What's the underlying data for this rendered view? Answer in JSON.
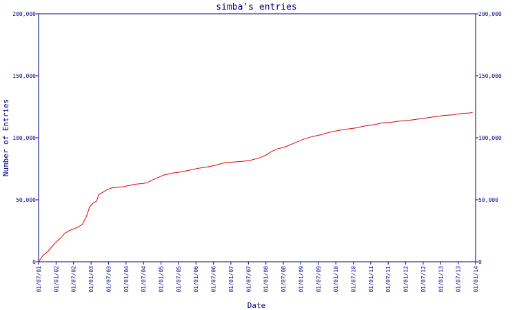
{
  "chart_data": {
    "type": "line",
    "title": "simba's entries",
    "xlabel": "Date",
    "ylabel": "Number of Entries",
    "x_ticks": [
      "01/07/01",
      "01/01/02",
      "01/07/02",
      "01/01/03",
      "01/07/03",
      "01/01/04",
      "01/07/04",
      "01/01/05",
      "01/07/05",
      "01/01/06",
      "01/07/06",
      "01/01/07",
      "01/07/07",
      "01/01/08",
      "01/07/08",
      "01/01/09",
      "01/07/09",
      "01/01/10",
      "01/07/10",
      "01/01/11",
      "01/07/11",
      "01/01/12",
      "01/07/12",
      "01/01/13",
      "01/07/13",
      "01/01/14"
    ],
    "y_ticks": [
      {
        "value": 0,
        "label": "0"
      },
      {
        "value": 50000,
        "label": "50,000"
      },
      {
        "value": 100000,
        "label": "100,000"
      },
      {
        "value": 150000,
        "label": "150,000"
      },
      {
        "value": 200000,
        "label": "200,000"
      }
    ],
    "ylim": [
      0,
      200000
    ],
    "xlim": [
      "2001-07-01",
      "2014-01-01"
    ],
    "grid": false,
    "colors": {
      "axis": "#000080",
      "line": "#e00000",
      "text": "#000080"
    },
    "series": [
      {
        "points": [
          [
            "2001-07-01",
            0
          ],
          [
            "2001-08-15",
            5000
          ],
          [
            "2001-10-01",
            8000
          ],
          [
            "2001-11-15",
            12000
          ],
          [
            "2002-01-01",
            16000
          ],
          [
            "2002-02-15",
            19000
          ],
          [
            "2002-04-01",
            23000
          ],
          [
            "2002-05-15",
            25000
          ],
          [
            "2002-07-01",
            26500
          ],
          [
            "2002-08-15",
            28000
          ],
          [
            "2002-10-01",
            30000
          ],
          [
            "2002-11-15",
            37000
          ],
          [
            "2002-12-15",
            44000
          ],
          [
            "2003-01-15",
            47000
          ],
          [
            "2003-03-01",
            49000
          ],
          [
            "2003-03-20",
            54000
          ],
          [
            "2003-05-01",
            56000
          ],
          [
            "2003-06-15",
            58000
          ],
          [
            "2003-08-01",
            59500
          ],
          [
            "2003-10-01",
            60000
          ],
          [
            "2003-12-01",
            60500
          ],
          [
            "2004-02-01",
            61500
          ],
          [
            "2004-04-01",
            62500
          ],
          [
            "2004-06-01",
            63000
          ],
          [
            "2004-08-01",
            63500
          ],
          [
            "2004-10-01",
            66000
          ],
          [
            "2004-12-01",
            68000
          ],
          [
            "2005-02-01",
            70000
          ],
          [
            "2005-05-01",
            71500
          ],
          [
            "2005-08-01",
            72500
          ],
          [
            "2005-11-01",
            74000
          ],
          [
            "2006-02-01",
            75500
          ],
          [
            "2006-05-01",
            76500
          ],
          [
            "2006-08-01",
            78000
          ],
          [
            "2006-11-01",
            80000
          ],
          [
            "2007-02-01",
            80500
          ],
          [
            "2007-05-01",
            81000
          ],
          [
            "2007-08-01",
            82000
          ],
          [
            "2007-11-01",
            84000
          ],
          [
            "2008-01-01",
            86000
          ],
          [
            "2008-03-01",
            89000
          ],
          [
            "2008-05-01",
            91000
          ],
          [
            "2008-08-01",
            93000
          ],
          [
            "2008-11-01",
            96000
          ],
          [
            "2009-02-01",
            99000
          ],
          [
            "2009-05-01",
            101000
          ],
          [
            "2009-08-01",
            102500
          ],
          [
            "2009-11-01",
            104500
          ],
          [
            "2010-02-01",
            106000
          ],
          [
            "2010-05-01",
            107000
          ],
          [
            "2010-08-01",
            108000
          ],
          [
            "2010-11-01",
            109500
          ],
          [
            "2011-02-01",
            110500
          ],
          [
            "2011-05-01",
            112000
          ],
          [
            "2011-08-01",
            112500
          ],
          [
            "2011-11-01",
            113500
          ],
          [
            "2012-02-01",
            114000
          ],
          [
            "2012-05-01",
            115000
          ],
          [
            "2012-08-01",
            116000
          ],
          [
            "2012-11-01",
            117000
          ],
          [
            "2013-02-01",
            118000
          ],
          [
            "2013-05-01",
            118500
          ],
          [
            "2013-08-01",
            119500
          ],
          [
            "2013-11-01",
            120000
          ],
          [
            "2013-12-01",
            120500
          ]
        ]
      }
    ]
  }
}
